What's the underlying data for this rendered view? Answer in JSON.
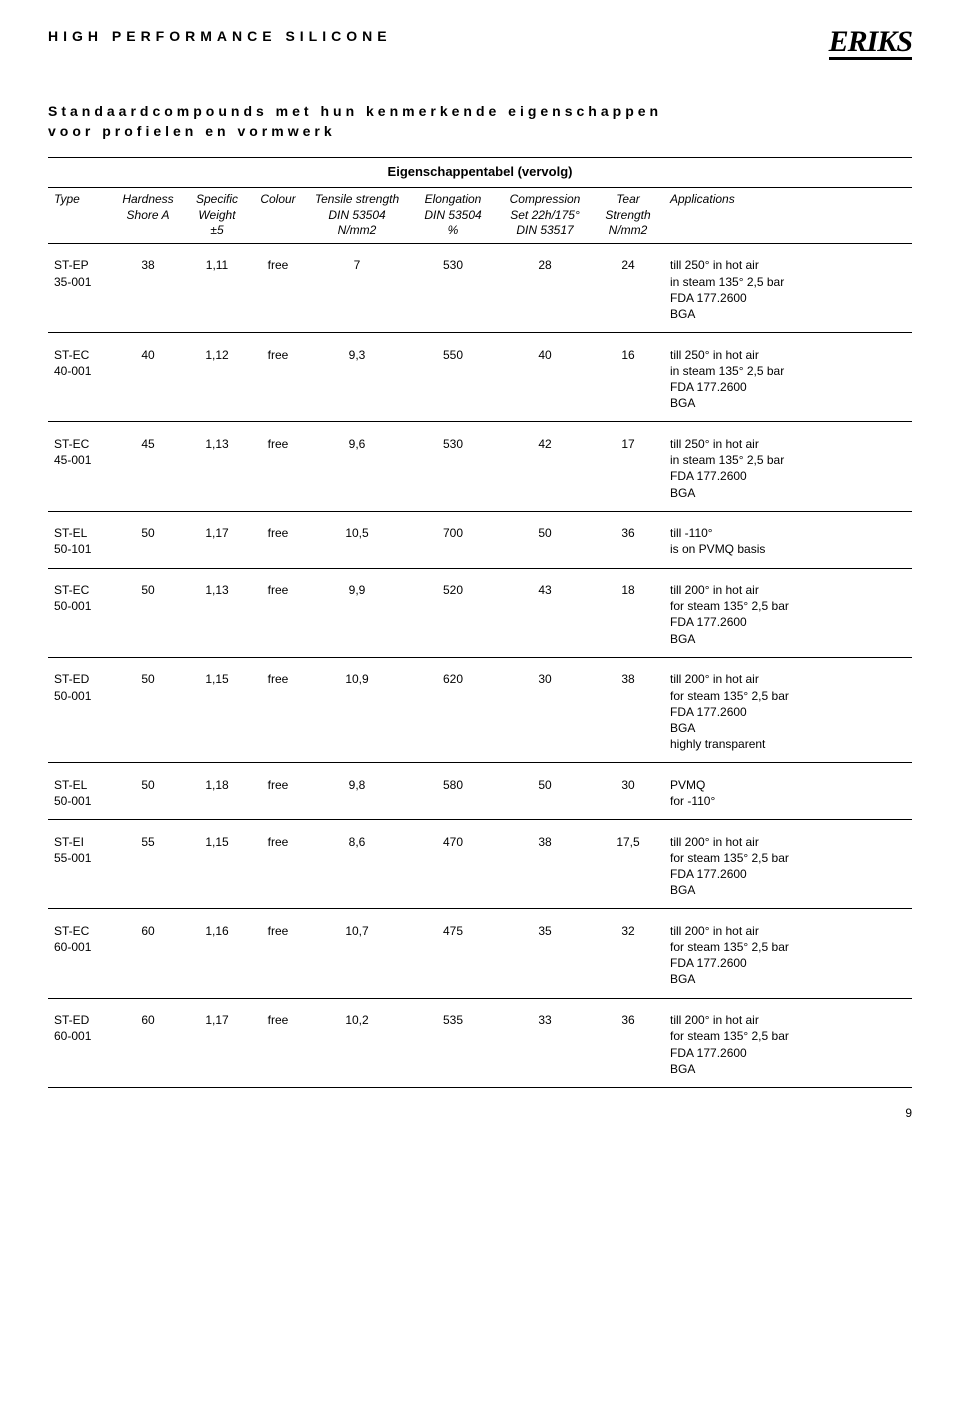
{
  "header": {
    "title": "HIGH PERFORMANCE SILICONE",
    "logo": "ERIKS"
  },
  "subtitle_line1": "Standaardcompounds met hun kenmerkende eigenschappen",
  "subtitle_line2": "voor profielen en vormwerk",
  "table_caption": "Eigenschappentabel (vervolg)",
  "columns": [
    {
      "l1": "Type",
      "l2": "",
      "l3": ""
    },
    {
      "l1": "Hardness",
      "l2": "Shore A",
      "l3": ""
    },
    {
      "l1": "Specific",
      "l2": "Weight",
      "l3": "±5"
    },
    {
      "l1": "Colour",
      "l2": "",
      "l3": ""
    },
    {
      "l1": "Tensile strength",
      "l2": "DIN 53504",
      "l3": "N/mm2"
    },
    {
      "l1": "Elongation",
      "l2": "DIN 53504",
      "l3": "%"
    },
    {
      "l1": "Compression",
      "l2": "Set 22h/175°",
      "l3": "DIN 53517"
    },
    {
      "l1": "Tear",
      "l2": "Strength",
      "l3": "N/mm2"
    },
    {
      "l1": "Applications",
      "l2": "",
      "l3": ""
    }
  ],
  "rows": [
    {
      "type1": "ST-EP",
      "type2": "35-001",
      "h": "38",
      "sw": "1,11",
      "col": "free",
      "ts": "7",
      "el": "530",
      "cs": "28",
      "tear": "24",
      "app": "till 250° in hot air\nin steam 135° 2,5 bar\nFDA 177.2600\nBGA"
    },
    {
      "type1": "ST-EC",
      "type2": "40-001",
      "h": "40",
      "sw": "1,12",
      "col": "free",
      "ts": "9,3",
      "el": "550",
      "cs": "40",
      "tear": "16",
      "app": "till 250° in hot air\nin steam 135° 2,5 bar\nFDA 177.2600\nBGA"
    },
    {
      "type1": "ST-EC",
      "type2": "45-001",
      "h": "45",
      "sw": "1,13",
      "col": "free",
      "ts": "9,6",
      "el": "530",
      "cs": "42",
      "tear": "17",
      "app": "till 250° in hot air\nin steam 135° 2,5 bar\nFDA 177.2600\nBGA"
    },
    {
      "type1": "ST-EL",
      "type2": "50-101",
      "h": "50",
      "sw": "1,17",
      "col": "free",
      "ts": "10,5",
      "el": "700",
      "cs": "50",
      "tear": "36",
      "app": "till -110°\nis on PVMQ basis"
    },
    {
      "type1": "ST-EC",
      "type2": "50-001",
      "h": "50",
      "sw": "1,13",
      "col": "free",
      "ts": "9,9",
      "el": "520",
      "cs": "43",
      "tear": "18",
      "app": "till 200° in hot air\nfor steam 135° 2,5 bar\nFDA 177.2600\nBGA"
    },
    {
      "type1": "ST-ED",
      "type2": "50-001",
      "h": "50",
      "sw": "1,15",
      "col": "free",
      "ts": "10,9",
      "el": "620",
      "cs": "30",
      "tear": "38",
      "app": "till 200° in hot air\nfor steam 135° 2,5 bar\nFDA 177.2600\nBGA\nhighly transparent"
    },
    {
      "type1": "ST-EL",
      "type2": "50-001",
      "h": "50",
      "sw": "1,18",
      "col": "free",
      "ts": "9,8",
      "el": "580",
      "cs": "50",
      "tear": "30",
      "app": "PVMQ\nfor -110°"
    },
    {
      "type1": "ST-EI",
      "type2": "55-001",
      "h": "55",
      "sw": "1,15",
      "col": "free",
      "ts": "8,6",
      "el": "470",
      "cs": "38",
      "tear": "17,5",
      "app": "till 200° in hot air\nfor steam 135° 2,5 bar\nFDA 177.2600\nBGA"
    },
    {
      "type1": "ST-EC",
      "type2": "60-001",
      "h": "60",
      "sw": "1,16",
      "col": "free",
      "ts": "10,7",
      "el": "475",
      "cs": "35",
      "tear": "32",
      "app": "till 200° in hot air\nfor steam 135° 2,5 bar\nFDA 177.2600\nBGA"
    },
    {
      "type1": "ST-ED",
      "type2": "60-001",
      "h": "60",
      "sw": "1,17",
      "col": "free",
      "ts": "10,2",
      "el": "535",
      "cs": "33",
      "tear": "36",
      "app": "till 200° in hot air\nfor steam 135° 2,5 bar\nFDA 177.2600\nBGA"
    }
  ],
  "page_number": "9"
}
